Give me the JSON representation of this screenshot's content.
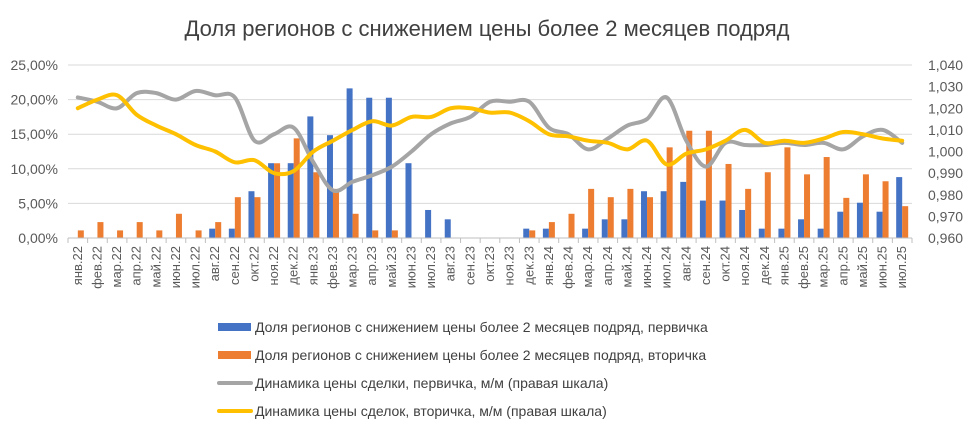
{
  "chart_data": {
    "type": "bar+line",
    "title": "Доля регионов с снижением цены более 2 месяцев подряд",
    "categories": [
      "янв.22",
      "фев.22",
      "мар.22",
      "апр.22",
      "май.22",
      "июн.22",
      "июл.22",
      "авг.22",
      "сен.22",
      "окт.22",
      "ноя.22",
      "дек.22",
      "янв.23",
      "фев.23",
      "мар.23",
      "апр.23",
      "май.23",
      "июн.23",
      "июл.23",
      "авг.23",
      "сен.23",
      "окт.23",
      "ноя.23",
      "дек.23",
      "янв.24",
      "фев.24",
      "мар.24",
      "апр.24",
      "май.24",
      "июн.24",
      "июл.24",
      "авг.24",
      "сен.24",
      "окт.24",
      "ноя.24",
      "дек.24",
      "янв.25",
      "фев.25",
      "мар.25",
      "апр.25",
      "май.25",
      "июн.25",
      "июл.25"
    ],
    "left_axis": {
      "ylim": [
        0,
        25
      ],
      "ticks": [
        "0,00%",
        "5,00%",
        "10,00%",
        "15,00%",
        "20,00%",
        "25,00%"
      ]
    },
    "right_axis": {
      "ylim": [
        0.96,
        1.04
      ],
      "ticks": [
        "0,960",
        "0,970",
        "0,980",
        "0,990",
        "1,000",
        "1,010",
        "1,020",
        "1,030",
        "1,040"
      ]
    },
    "grid": true,
    "legend_position": "bottom",
    "series": [
      {
        "name": "Доля регионов с снижением цены более 2 месяцев подряд, первичка",
        "type": "bar",
        "axis": "left",
        "color": "#4472C4",
        "values": [
          0,
          0,
          0,
          0,
          0,
          0,
          0,
          1.35,
          1.35,
          6.76,
          10.81,
          10.81,
          17.57,
          14.86,
          21.62,
          20.27,
          20.27,
          10.81,
          4.05,
          2.7,
          0,
          0,
          0,
          1.35,
          1.35,
          0,
          1.35,
          2.7,
          2.7,
          6.76,
          6.76,
          8.11,
          5.41,
          5.41,
          4.05,
          1.35,
          1.35,
          2.7,
          1.35,
          3.8,
          5.1,
          3.8,
          8.8
        ]
      },
      {
        "name": "Доля регионов с снижением цены более 2 месяцев подряд, вторичка",
        "type": "bar",
        "axis": "left",
        "color": "#ED7D31",
        "values": [
          1.1,
          2.3,
          1.1,
          2.3,
          1.1,
          3.5,
          1.1,
          2.3,
          5.9,
          5.9,
          10.8,
          14.4,
          9.5,
          7.1,
          3.5,
          1.1,
          1.1,
          0,
          0,
          0,
          0,
          0,
          0,
          1.1,
          2.3,
          3.5,
          7.1,
          5.9,
          7.1,
          5.9,
          13.1,
          15.5,
          15.5,
          10.7,
          7.1,
          9.5,
          13.1,
          9.2,
          11.7,
          5.8,
          9.2,
          8.2,
          4.6
        ]
      },
      {
        "name": "Динамика цены сделки, первичка, м/м (правая шкала)",
        "type": "line",
        "axis": "right",
        "color": "#A5A5A5",
        "values": [
          1.025,
          1.023,
          1.02,
          1.027,
          1.027,
          1.024,
          1.028,
          1.026,
          1.025,
          1.005,
          1.008,
          1.011,
          0.995,
          0.982,
          0.986,
          0.989,
          0.993,
          1.0,
          1.008,
          1.013,
          1.016,
          1.023,
          1.023,
          1.023,
          1.011,
          1.008,
          1.001,
          1.006,
          1.012,
          1.015,
          1.025,
          1.005,
          0.993,
          1.004,
          1.003,
          1.003,
          1.004,
          1.003,
          1.004,
          1.001,
          1.007,
          1.01,
          1.004
        ]
      },
      {
        "name": "Динамика цены сделок, вторичка, м/м (правая шкала)",
        "type": "line",
        "axis": "right",
        "color": "#FFC000",
        "values": [
          1.02,
          1.024,
          1.026,
          1.017,
          1.012,
          1.008,
          1.003,
          1.0,
          0.995,
          0.996,
          0.99,
          0.991,
          1.0,
          1.005,
          1.01,
          1.014,
          1.012,
          1.016,
          1.016,
          1.02,
          1.02,
          1.018,
          1.018,
          1.014,
          1.008,
          1.007,
          1.005,
          1.004,
          1.001,
          1.005,
          0.994,
          0.999,
          1.001,
          1.005,
          1.01,
          1.004,
          1.005,
          1.004,
          1.006,
          1.009,
          1.008,
          1.006,
          1.005
        ]
      }
    ]
  }
}
